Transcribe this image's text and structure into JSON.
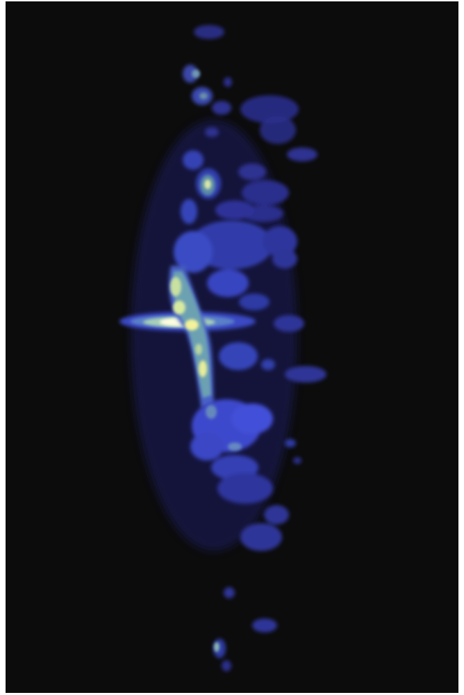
{
  "image": {
    "background_color": "#0c0c0c",
    "page_color": "#ffffff",
    "palette": {
      "deep_blue": "#2a2e8c",
      "blue": "#3c46c8",
      "bright_blue": "#4a5ae6",
      "teal": "#6fa8b0",
      "pale_green": "#b9d6a0",
      "yellow": "#f2f29a",
      "white_hot": "#fdfde0"
    }
  }
}
